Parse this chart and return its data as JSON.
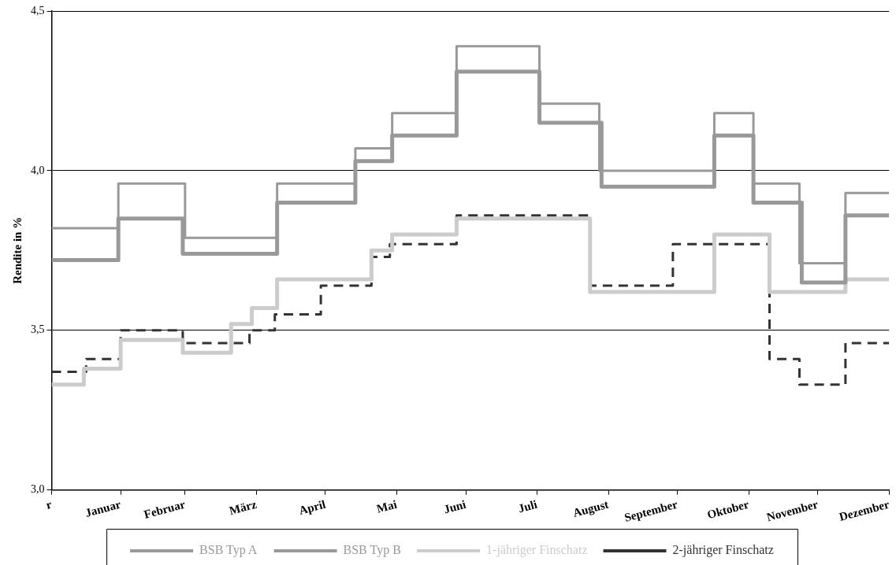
{
  "chart_data": {
    "type": "step",
    "ylabel": "Rendite in %",
    "xlim": [
      "--01-01",
      "--12-31"
    ],
    "xticks": [
      {
        "value": "--01-01",
        "label": "r"
      },
      {
        "value": "--01-31",
        "label": "Januar"
      },
      {
        "value": "--02-28",
        "label": "Februar"
      },
      {
        "value": "--03-31",
        "label": "März"
      },
      {
        "value": "--04-30",
        "label": "April"
      },
      {
        "value": "--05-31",
        "label": "Mai"
      },
      {
        "value": "--06-30",
        "label": "Juni"
      },
      {
        "value": "--07-31",
        "label": "Juli"
      },
      {
        "value": "--08-31",
        "label": "August"
      },
      {
        "value": "--09-30",
        "label": "September"
      },
      {
        "value": "--10-31",
        "label": "Oktober"
      },
      {
        "value": "--11-30",
        "label": "November"
      },
      {
        "value": "--12-31",
        "label": "Dezember"
      }
    ],
    "ylim": [
      3,
      4.5
    ],
    "yticks": [
      {
        "value": 3,
        "label": "3,0"
      },
      {
        "value": 3.5,
        "label": "3,5"
      },
      {
        "value": 4,
        "label": "4,0"
      },
      {
        "value": 4.5,
        "label": "4,5"
      }
    ],
    "grid": "y",
    "legend": "bottom",
    "marker": "none",
    "series": [
      {
        "name": "BSB Typ A",
        "color": "#999999",
        "line_style": "solid",
        "x": [
          "--01-01",
          "--01-30",
          "--02-27",
          "--04-09",
          "--05-13",
          "--05-29",
          "--06-26",
          "--08-01",
          "--08-28",
          "--10-16",
          "--11-02",
          "--11-23",
          "--12-12",
          "--12-31"
        ],
        "values": [
          3.72,
          3.85,
          3.74,
          3.9,
          4.03,
          4.11,
          4.31,
          4.15,
          3.95,
          4.11,
          3.9,
          3.65,
          3.86,
          3.86
        ]
      },
      {
        "name": "BSB Typ B",
        "color": "#999999",
        "line_style": "solid",
        "x": [
          "--01-01",
          "--01-30",
          "--02-28",
          "--04-09",
          "--05-13",
          "--05-29",
          "--06-26",
          "--08-01",
          "--08-27",
          "--10-16",
          "--11-02",
          "--11-22",
          "--12-12",
          "--12-31"
        ],
        "values": [
          3.82,
          3.96,
          3.79,
          3.96,
          4.07,
          4.18,
          4.39,
          4.21,
          4.0,
          4.18,
          3.96,
          3.71,
          3.93,
          3.93
        ]
      },
      {
        "name": "1-jähriger Finschatz",
        "color": "#cccccc",
        "line_style": "solid",
        "x": [
          "--01-01",
          "--01-15",
          "--01-31",
          "--02-27",
          "--03-20",
          "--03-29",
          "--04-09",
          "--05-20",
          "--05-29",
          "--06-26",
          "--08-23",
          "--10-16",
          "--11-09",
          "--12-12",
          "--12-31"
        ],
        "values": [
          3.33,
          3.38,
          3.47,
          3.43,
          3.52,
          3.57,
          3.66,
          3.75,
          3.8,
          3.85,
          3.62,
          3.8,
          3.62,
          3.66,
          3.66
        ]
      },
      {
        "name": "2-jähriger Finschatz",
        "color": "#333333",
        "line_style": "dashed",
        "x": [
          "--01-01",
          "--01-16",
          "--01-31",
          "--02-27",
          "--03-28",
          "--04-08",
          "--04-28",
          "--05-20",
          "--05-28",
          "--06-26",
          "--08-23",
          "--09-28",
          "--11-09",
          "--11-22",
          "--12-12",
          "--12-31"
        ],
        "values": [
          3.37,
          3.41,
          3.5,
          3.46,
          3.5,
          3.55,
          3.64,
          3.73,
          3.77,
          3.86,
          3.64,
          3.77,
          3.41,
          3.33,
          3.46,
          3.46
        ]
      }
    ]
  }
}
